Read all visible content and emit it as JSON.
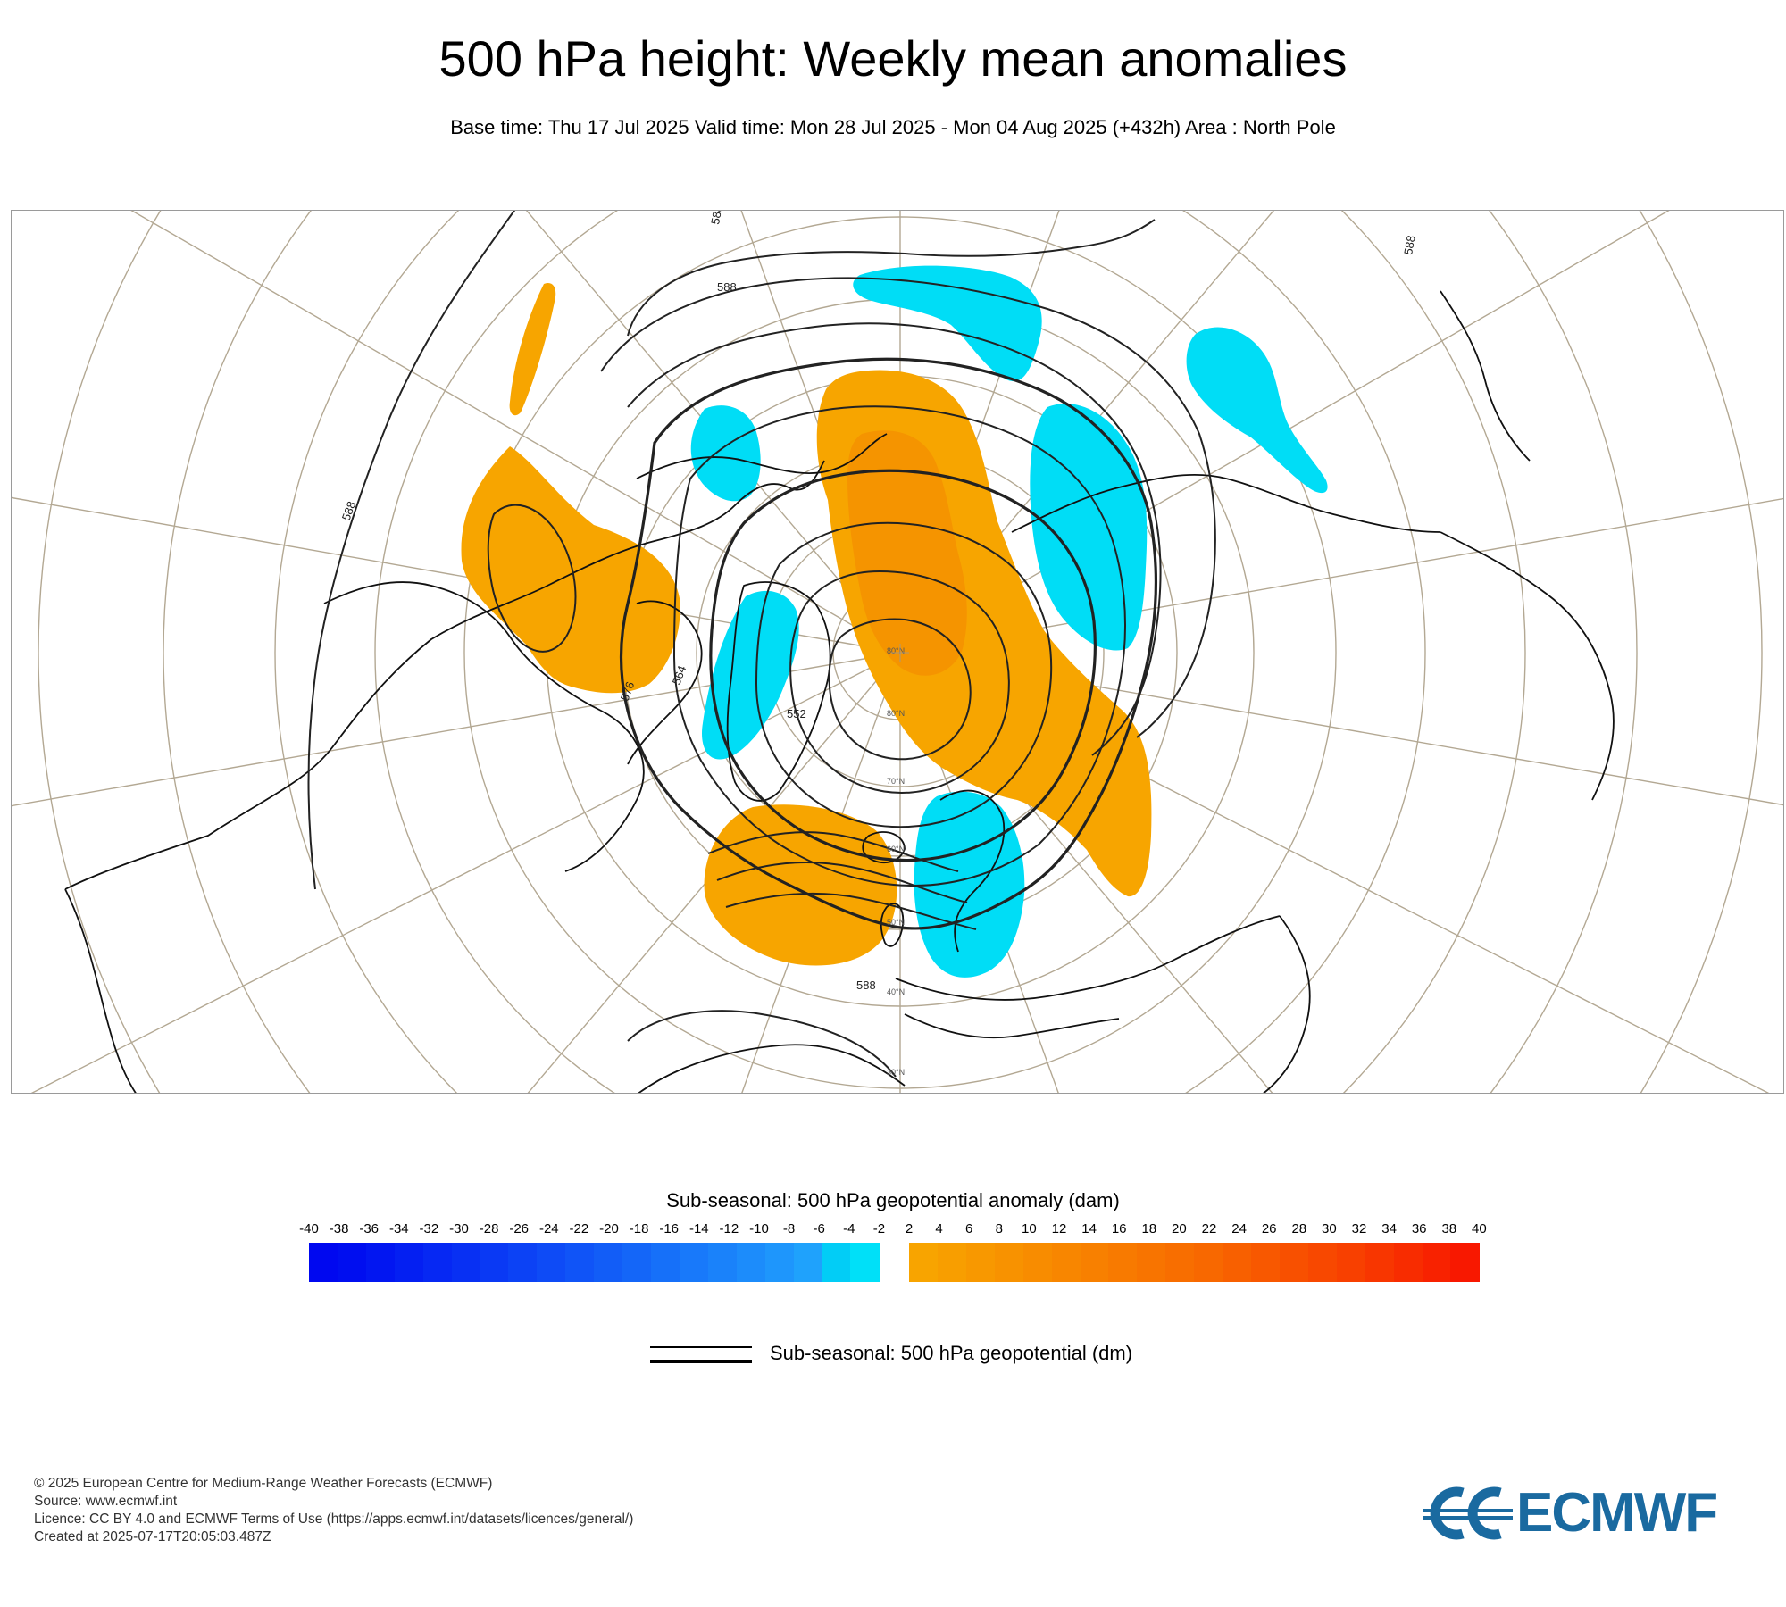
{
  "header": {
    "title": "500 hPa height: Weekly mean anomalies",
    "subtitle": "Base time: Thu 17 Jul 2025 Valid time: Mon 28 Jul 2025 - Mon 04 Aug 2025 (+432h) Area : North Pole"
  },
  "map": {
    "contour_labels": [
      "588",
      "588",
      "588",
      "588",
      "576",
      "564",
      "552",
      "588"
    ],
    "latitude_labels": [
      "80°N",
      "80°N",
      "70°N",
      "60°N",
      "50°N",
      "40°N",
      "30°N"
    ],
    "colors": {
      "negative_anomaly": "#00ddf6",
      "positive_anomaly": "#f7a500",
      "positive_anomaly_strong": "#f59400",
      "graticule": "#b3a893",
      "coastline": "#111111",
      "contour": "#222222"
    }
  },
  "colorbar": {
    "title": "Sub-seasonal: 500 hPa geopotential anomaly (dam)",
    "tick_labels": [
      "-40",
      "-38",
      "-36",
      "-34",
      "-32",
      "-30",
      "-28",
      "-26",
      "-24",
      "-22",
      "-20",
      "-18",
      "-16",
      "-14",
      "-12",
      "-10",
      "-8",
      "-6",
      "-4",
      "-2",
      "2",
      "4",
      "6",
      "8",
      "10",
      "12",
      "14",
      "16",
      "18",
      "20",
      "22",
      "24",
      "26",
      "28",
      "30",
      "32",
      "34",
      "36",
      "38",
      "40"
    ],
    "negative_colors": [
      "#0008f0",
      "#000ef0",
      "#0216f1",
      "#041ff2",
      "#0628f3",
      "#0830f3",
      "#0a39f4",
      "#0c42f5",
      "#0e4bf6",
      "#1054f7",
      "#125df7",
      "#1466f8",
      "#1670f9",
      "#1879fa",
      "#1a82fa",
      "#1c8cfb",
      "#1e96fc",
      "#1fa2fc",
      "#02cdf6",
      "#00e0f8"
    ],
    "positive_colors": [
      "#f8a400",
      "#f89e00",
      "#f89800",
      "#f89200",
      "#f88c00",
      "#f88600",
      "#f88000",
      "#f87a00",
      "#f87400",
      "#f86e00",
      "#f86800",
      "#f86000",
      "#f85800",
      "#f85000",
      "#f84800",
      "#f84000",
      "#f83600",
      "#f82c00",
      "#f82200",
      "#f81800"
    ]
  },
  "legend": {
    "contour_label": "Sub-seasonal: 500 hPa geopotential (dm)"
  },
  "footer": {
    "copyright": "© 2025 European Centre for Medium-Range Weather Forecasts (ECMWF)",
    "source": "Source: www.ecmwf.int",
    "licence": "Licence: CC BY 4.0 and ECMWF Terms of Use (https://apps.ecmwf.int/datasets/licences/general/)",
    "created": "Created at 2025-07-17T20:05:03.487Z"
  },
  "logo": {
    "text": "ECMWF",
    "icon": "ecmwf-logo-icon",
    "color": "#1a6aa0"
  }
}
